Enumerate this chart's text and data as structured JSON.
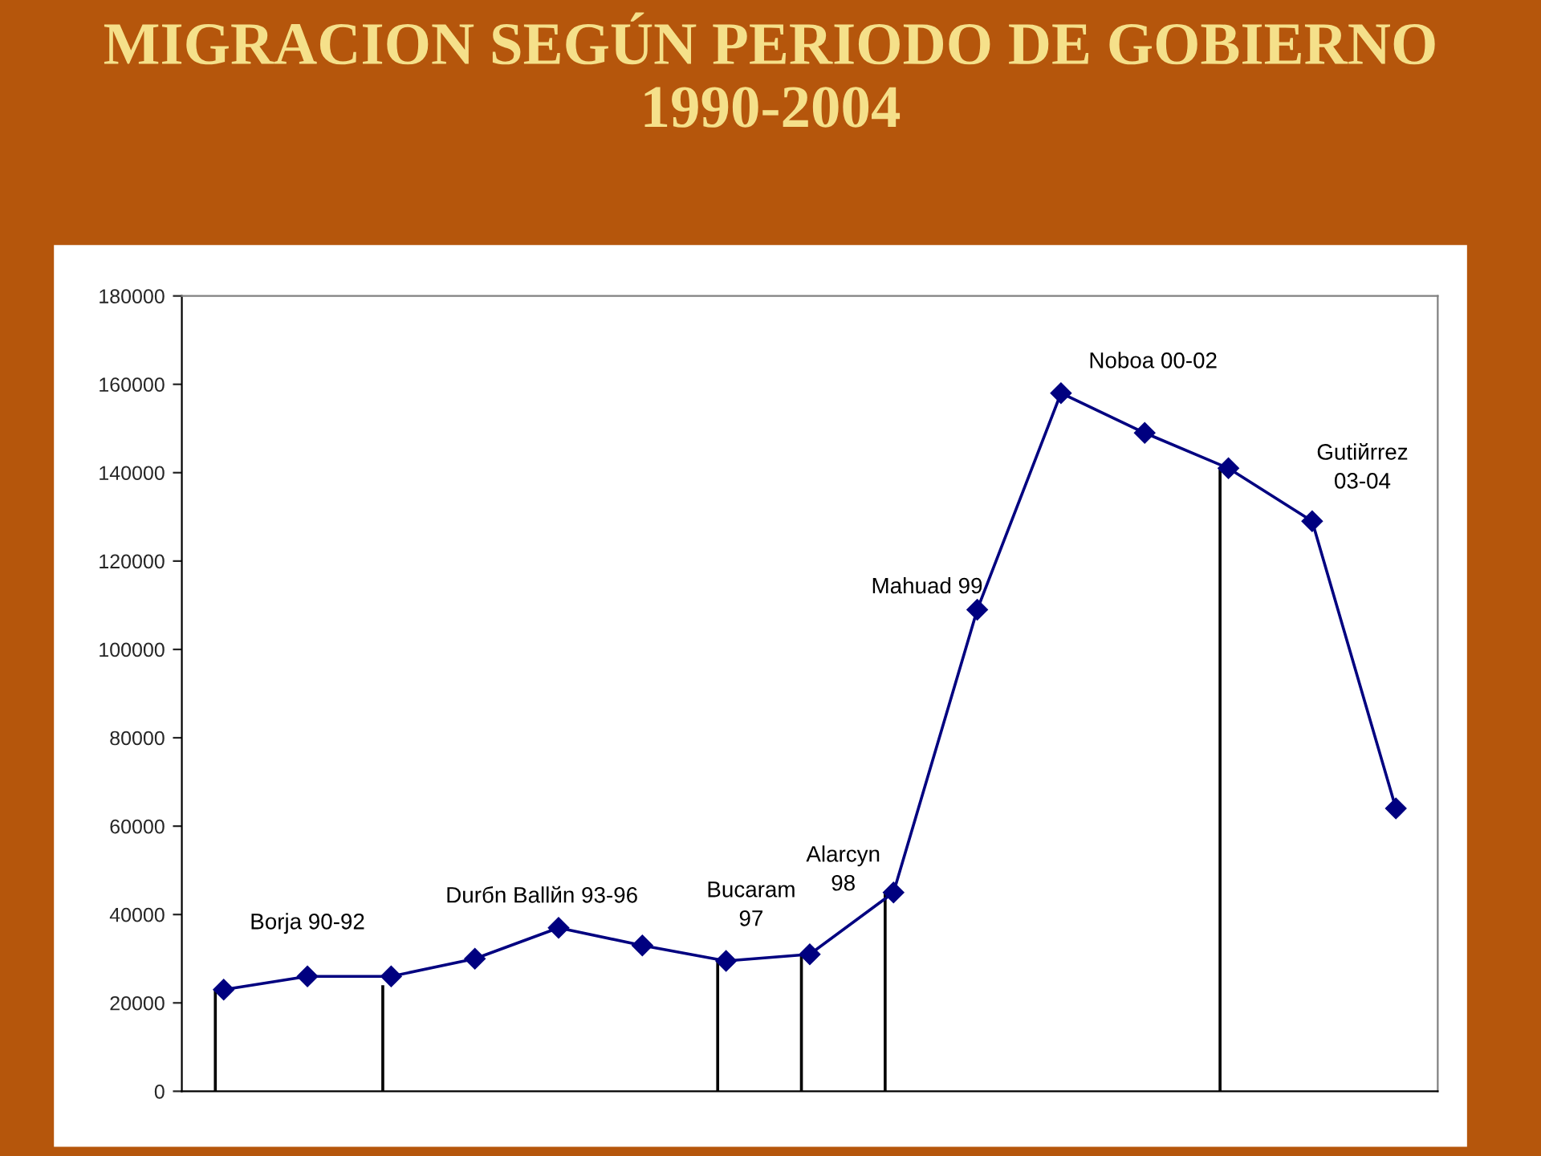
{
  "chart_data": {
    "type": "line",
    "title": "MIGRACION SEGÚN PERIODO DE GOBIERNO 1990-2004",
    "categories": [
      null,
      null,
      null,
      null,
      null,
      null,
      null,
      null,
      null,
      null,
      null,
      null,
      null,
      null,
      null
    ],
    "series": [
      {
        "color": "#000080",
        "values": [
          23000,
          26000,
          26000,
          30000,
          37000,
          33000,
          29500,
          31000,
          45000,
          109000,
          158000,
          149000,
          141000,
          129000,
          64000
        ]
      },
      {
        "type": "bar",
        "color": "#000000",
        "values": [
          23000,
          null,
          24000,
          null,
          null,
          null,
          29500,
          31000,
          45000,
          null,
          null,
          null,
          141000,
          null,
          null
        ]
      }
    ],
    "marker": "diamond",
    "line_style": "solid",
    "ylim": [
      0,
      180000
    ],
    "yticks": [
      0,
      20000,
      40000,
      60000,
      80000,
      100000,
      120000,
      140000,
      160000,
      180000
    ],
    "grid": false,
    "legend": false,
    "annotations": [
      "Borja 90-92",
      "Durбn Ballйn 93-96",
      "Bucaram\n97",
      "Alarcyn\n98",
      "Mahuad 99",
      "Noboa 00-02",
      "Gutiйrrez\n03-04"
    ]
  }
}
